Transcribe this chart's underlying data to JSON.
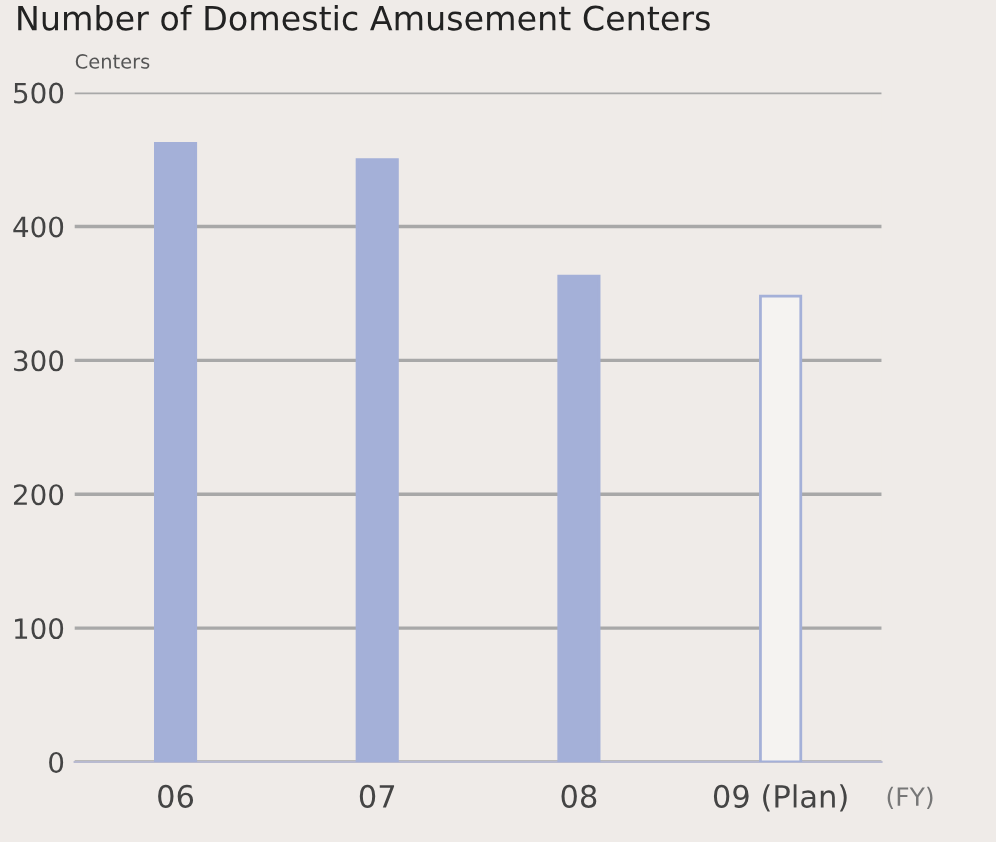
{
  "chart_data": {
    "type": "bar",
    "title": "Number of Domestic Amusement Centers",
    "ylabel": "Centers",
    "xlabel": "(FY)",
    "categories": [
      "06",
      "07",
      "08",
      "09 (Plan)"
    ],
    "values": [
      462,
      450,
      363,
      348
    ],
    "colors": [
      "#a4b0d8",
      "#a4b0d8",
      "#a4b0d8",
      "#f5f3f1"
    ],
    "ylim": [
      0,
      500
    ],
    "yticks": [
      0,
      100,
      200,
      300,
      400,
      500
    ],
    "grid": "y",
    "legend": false
  }
}
